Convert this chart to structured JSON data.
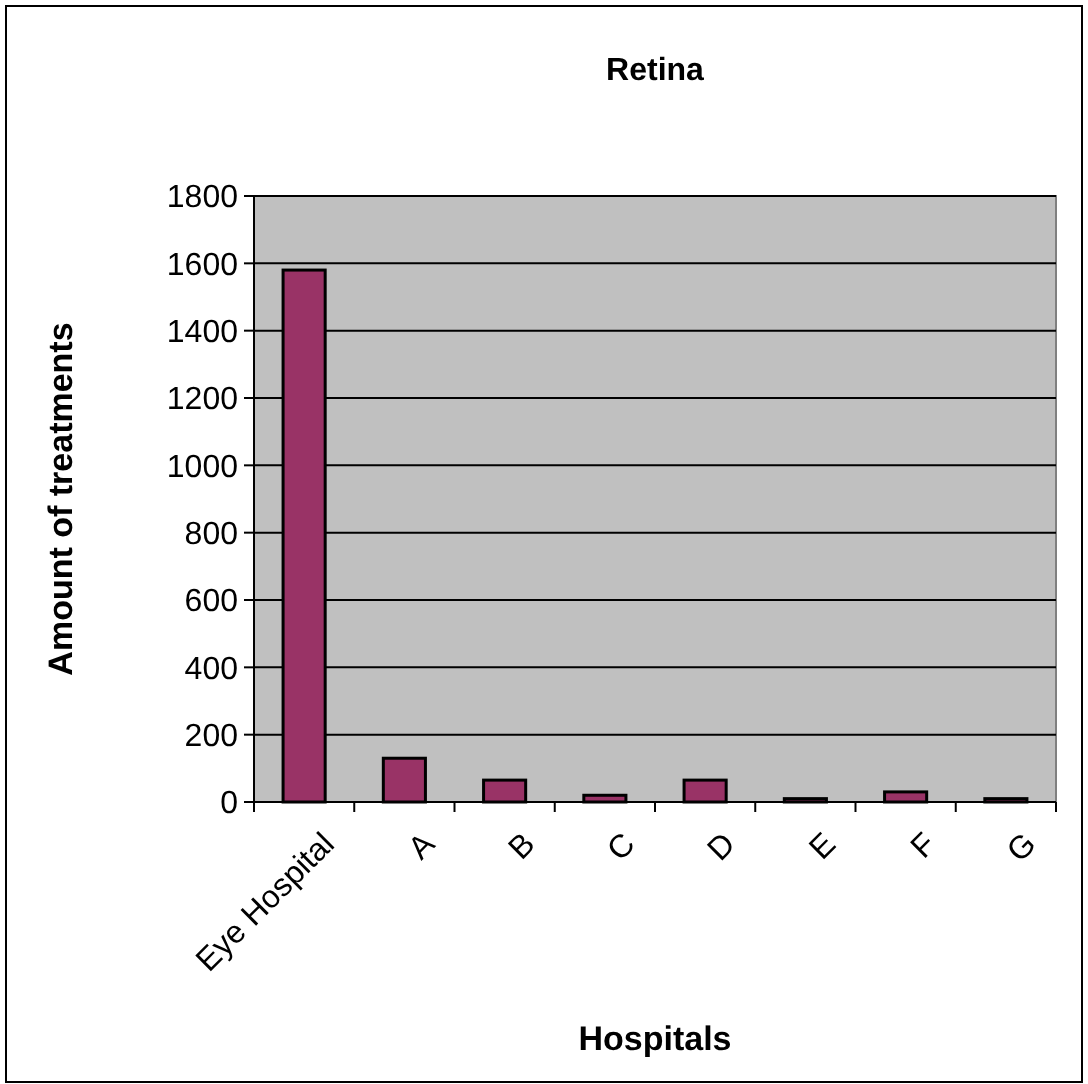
{
  "chart_data": {
    "type": "bar",
    "title": "Retina",
    "xlabel": "Hospitals",
    "ylabel": "Amount of treatments",
    "categories": [
      "Eye Hospital",
      "A",
      "B",
      "C",
      "D",
      "E",
      "F",
      "G"
    ],
    "values": [
      1580,
      130,
      65,
      20,
      65,
      10,
      30,
      10
    ],
    "color": "#993366",
    "ylim": [
      0,
      1800
    ],
    "yticks": [
      0,
      200,
      400,
      600,
      800,
      1000,
      1200,
      1400,
      1600,
      1800
    ],
    "grid": "y"
  }
}
